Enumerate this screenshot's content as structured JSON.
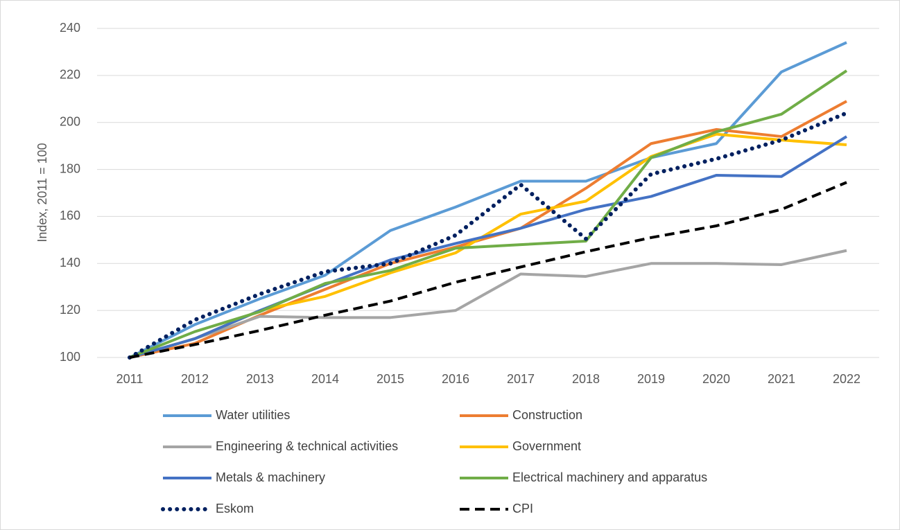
{
  "chart_data": {
    "type": "line",
    "y_label": "Index, 2011 = 100",
    "categories": [
      "2011",
      "2012",
      "2013",
      "2014",
      "2015",
      "2016",
      "2017",
      "2018",
      "2019",
      "2020",
      "2021",
      "2022"
    ],
    "ylim": [
      100,
      240
    ],
    "yticks": [
      100,
      120,
      140,
      160,
      180,
      200,
      220,
      240
    ],
    "grid": true,
    "legend": "bottom",
    "series": [
      {
        "name": "Water utilities",
        "color": "#5b9bd5",
        "style": "solid",
        "values": [
          100,
          114,
          125,
          135,
          154,
          164,
          175,
          175,
          185,
          191,
          221.5,
          234
        ]
      },
      {
        "name": "Construction",
        "color": "#ed7d31",
        "style": "solid",
        "values": [
          100,
          106,
          118,
          129,
          140,
          147,
          155,
          172,
          191,
          197,
          194,
          209
        ]
      },
      {
        "name": "Engineering & technical activities",
        "color": "#a5a5a5",
        "style": "solid",
        "values": [
          100,
          108,
          117.5,
          117,
          117,
          120,
          135.5,
          134.5,
          140,
          140,
          139.5,
          145.5
        ]
      },
      {
        "name": "Government",
        "color": "#ffc000",
        "style": "solid",
        "values": [
          100,
          108,
          120,
          126,
          136,
          144.5,
          161,
          166.5,
          185.5,
          195,
          192.5,
          190.5
        ]
      },
      {
        "name": "Metals & machinery",
        "color": "#4472c4",
        "style": "solid",
        "values": [
          100,
          108,
          120,
          131,
          141.5,
          148.5,
          155,
          163,
          168.5,
          177.5,
          177,
          194
        ]
      },
      {
        "name": "Electrical machinery and apparatus",
        "color": "#70ad47",
        "style": "solid",
        "values": [
          100,
          111,
          119.5,
          131.5,
          137,
          146.5,
          148,
          149.5,
          185,
          196,
          203.5,
          222
        ]
      },
      {
        "name": "Eskom",
        "color": "#002060",
        "style": "dotted",
        "values": [
          100,
          116,
          127,
          136.5,
          140,
          152,
          173.5,
          150.5,
          178,
          184.5,
          192.5,
          204
        ]
      },
      {
        "name": "CPI",
        "color": "#000000",
        "style": "dashed",
        "values": [
          100,
          105.5,
          111.5,
          118,
          124,
          132,
          138.5,
          145,
          151,
          156,
          163,
          174.5
        ]
      }
    ]
  }
}
